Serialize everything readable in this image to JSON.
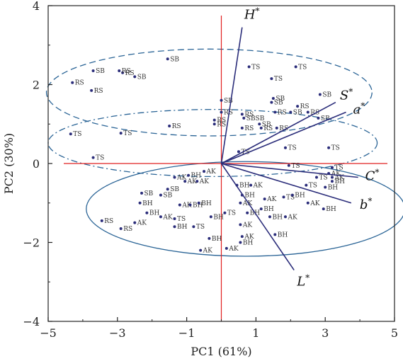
{
  "chart_data": {
    "type": "scatter",
    "xlabel": "PC1 (61%)",
    "ylabel": "PC2 (30%)",
    "xlim": [
      -5,
      5
    ],
    "ylim": [
      -4,
      4
    ],
    "xticks": [
      "−5",
      "−3",
      "−1",
      "1",
      "3",
      "5"
    ],
    "yticks": [
      "−4",
      "−2",
      "0",
      "2",
      "4"
    ],
    "grid": false,
    "points": [
      {
        "x": -3.7,
        "y": 2.35,
        "label": "SB"
      },
      {
        "x": -2.85,
        "y": 2.3,
        "label": "RS"
      },
      {
        "x": -2.95,
        "y": 2.35,
        "label": "RS"
      },
      {
        "x": -2.5,
        "y": 2.2,
        "label": "SB"
      },
      {
        "x": -1.55,
        "y": 2.65,
        "label": "SB"
      },
      {
        "x": -4.3,
        "y": 2.05,
        "label": "RS"
      },
      {
        "x": -3.75,
        "y": 1.85,
        "label": "RS"
      },
      {
        "x": -4.35,
        "y": 0.75,
        "label": "TS"
      },
      {
        "x": -2.9,
        "y": 0.77,
        "label": "TS"
      },
      {
        "x": -3.7,
        "y": 0.15,
        "label": "TS"
      },
      {
        "x": 0.8,
        "y": 2.45,
        "label": "TS"
      },
      {
        "x": 2.15,
        "y": 2.45,
        "label": "TS"
      },
      {
        "x": 1.45,
        "y": 2.15,
        "label": "TS"
      },
      {
        "x": 0.0,
        "y": 1.6,
        "label": "SB"
      },
      {
        "x": 0.0,
        "y": 1.3,
        "label": "RS"
      },
      {
        "x": -0.2,
        "y": 1.1,
        "label": "RS"
      },
      {
        "x": -0.2,
        "y": 1.0,
        "label": "RS"
      },
      {
        "x": -1.5,
        "y": 0.95,
        "label": "RS"
      },
      {
        "x": 1.5,
        "y": 1.65,
        "label": "SB"
      },
      {
        "x": 2.85,
        "y": 1.75,
        "label": "SB"
      },
      {
        "x": 1.45,
        "y": 1.55,
        "label": "SB"
      },
      {
        "x": 2.2,
        "y": 1.45,
        "label": "RS"
      },
      {
        "x": 0.6,
        "y": 1.25,
        "label": "RS"
      },
      {
        "x": 0.65,
        "y": 1.15,
        "label": "SBSB"
      },
      {
        "x": 1.55,
        "y": 1.3,
        "label": "RS"
      },
      {
        "x": 2.0,
        "y": 1.3,
        "label": "SB"
      },
      {
        "x": 1.1,
        "y": 1.0,
        "label": "SB"
      },
      {
        "x": 0.6,
        "y": 0.9,
        "label": "RS"
      },
      {
        "x": 1.15,
        "y": 0.9,
        "label": "RS"
      },
      {
        "x": 1.6,
        "y": 0.9,
        "label": "RS"
      },
      {
        "x": 2.5,
        "y": 1.3,
        "label": "RS"
      },
      {
        "x": 2.8,
        "y": 1.15,
        "label": "SB"
      },
      {
        "x": 0.5,
        "y": 0.3,
        "label": "TS"
      },
      {
        "x": 1.85,
        "y": 0.4,
        "label": "TS"
      },
      {
        "x": 3.1,
        "y": 0.4,
        "label": "TS"
      },
      {
        "x": -0.5,
        "y": -0.2,
        "label": "AK"
      },
      {
        "x": -1.35,
        "y": -0.35,
        "label": "AK"
      },
      {
        "x": -0.95,
        "y": -0.3,
        "label": "BH"
      },
      {
        "x": -1.05,
        "y": -0.45,
        "label": "AK"
      },
      {
        "x": -0.7,
        "y": -0.45,
        "label": "AK"
      },
      {
        "x": -1.55,
        "y": -0.65,
        "label": "SB"
      },
      {
        "x": -2.3,
        "y": -0.75,
        "label": "SB"
      },
      {
        "x": -1.75,
        "y": -0.8,
        "label": "SB"
      },
      {
        "x": -2.35,
        "y": -1.0,
        "label": "BH"
      },
      {
        "x": -2.15,
        "y": -1.25,
        "label": "BH"
      },
      {
        "x": -2.5,
        "y": -1.5,
        "label": "AK"
      },
      {
        "x": -1.75,
        "y": -1.35,
        "label": "AK"
      },
      {
        "x": -1.2,
        "y": -1.05,
        "label": "AK"
      },
      {
        "x": -0.9,
        "y": -1.05,
        "label": "BH"
      },
      {
        "x": -1.35,
        "y": -1.4,
        "label": "TS"
      },
      {
        "x": -1.35,
        "y": -1.6,
        "label": "BH"
      },
      {
        "x": -0.8,
        "y": -1.6,
        "label": "TS"
      },
      {
        "x": -0.65,
        "y": -1.0,
        "label": "BH"
      },
      {
        "x": -0.3,
        "y": -1.35,
        "label": "BH"
      },
      {
        "x": -3.45,
        "y": -1.45,
        "label": "RS"
      },
      {
        "x": -2.9,
        "y": -1.65,
        "label": "RS"
      },
      {
        "x": -0.6,
        "y": -2.2,
        "label": "AK"
      },
      {
        "x": 0.1,
        "y": -1.25,
        "label": "TS"
      },
      {
        "x": -0.35,
        "y": -1.9,
        "label": "BH"
      },
      {
        "x": 0.15,
        "y": -2.15,
        "label": "AK"
      },
      {
        "x": 0.55,
        "y": -2.0,
        "label": "BH"
      },
      {
        "x": 0.6,
        "y": -1.85,
        "label": "AK"
      },
      {
        "x": 0.55,
        "y": -1.55,
        "label": "AK"
      },
      {
        "x": 0.45,
        "y": -0.55,
        "label": "BH"
      },
      {
        "x": 0.6,
        "y": -0.8,
        "label": "BH"
      },
      {
        "x": 0.55,
        "y": -1.0,
        "label": "AK"
      },
      {
        "x": 0.85,
        "y": -0.55,
        "label": "AK"
      },
      {
        "x": 1.15,
        "y": -1.15,
        "label": "BH"
      },
      {
        "x": 1.25,
        "y": -0.9,
        "label": "AK"
      },
      {
        "x": 1.4,
        "y": -1.35,
        "label": "BH"
      },
      {
        "x": 1.55,
        "y": -1.8,
        "label": "BH"
      },
      {
        "x": 0.75,
        "y": -1.25,
        "label": "BH"
      },
      {
        "x": 1.85,
        "y": -1.35,
        "label": "AK"
      },
      {
        "x": 1.8,
        "y": -0.85,
        "label": "TS"
      },
      {
        "x": 2.05,
        "y": -0.8,
        "label": "BH"
      },
      {
        "x": 1.95,
        "y": -0.05,
        "label": "TS"
      },
      {
        "x": 2.45,
        "y": -0.55,
        "label": "TS"
      },
      {
        "x": 2.5,
        "y": -1.0,
        "label": "AK"
      },
      {
        "x": 2.75,
        "y": -0.35,
        "label": "TS"
      },
      {
        "x": 3.1,
        "y": -0.25,
        "label": "AK"
      },
      {
        "x": 3.2,
        "y": -0.35,
        "label": "AK"
      },
      {
        "x": 3.2,
        "y": -0.45,
        "label": "BH"
      },
      {
        "x": 3.0,
        "y": -0.6,
        "label": "BH"
      },
      {
        "x": 2.95,
        "y": -1.15,
        "label": "BH"
      },
      {
        "x": 3.2,
        "y": -0.1,
        "label": "TS"
      }
    ],
    "vectors": [
      {
        "name": "H",
        "x": 0.6,
        "y": 3.45
      },
      {
        "name": "S",
        "x": 3.3,
        "y": 1.55
      },
      {
        "name": "a",
        "x": 3.6,
        "y": 1.3
      },
      {
        "name": "C",
        "x": 3.95,
        "y": -0.35
      },
      {
        "name": "b",
        "x": 3.75,
        "y": -1.0
      },
      {
        "name": "L",
        "x": 2.1,
        "y": -2.7
      }
    ],
    "vector_superscript": "*",
    "ellipses": [
      {
        "cx": -0.35,
        "cy": 1.8,
        "rx": 4.7,
        "ry": 1.1,
        "style": "dashed"
      },
      {
        "cx": -0.25,
        "cy": 0.52,
        "rx": 4.75,
        "ry": 0.85,
        "style": "dash-dot"
      },
      {
        "cx": 0.7,
        "cy": -1.15,
        "rx": 4.6,
        "ry": 1.2,
        "style": "solid"
      }
    ]
  }
}
